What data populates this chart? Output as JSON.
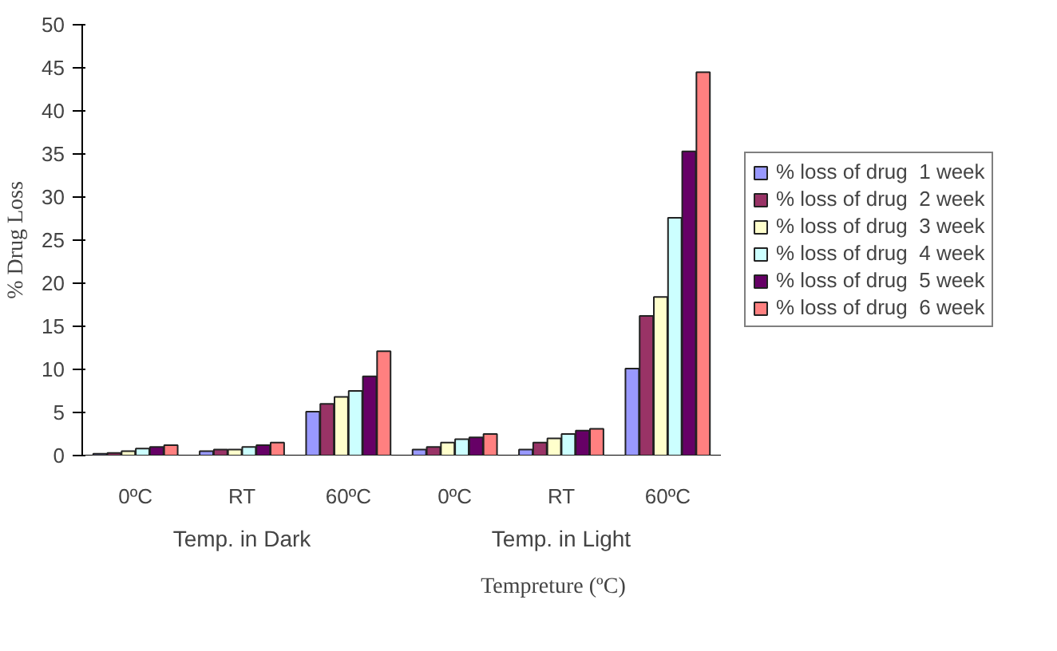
{
  "chart_data": {
    "type": "bar",
    "xlabel": "Tempreture (ºC)",
    "ylabel": "% Drug Loss",
    "categories": [
      "0ºC",
      "RT",
      "60ºC",
      "0ºC",
      "RT",
      "60ºC"
    ],
    "annotations": [
      "Temp. in Dark",
      "Temp. in Light"
    ],
    "series": [
      {
        "name": "% loss of drug  1 week",
        "color": "#9999ff",
        "values": [
          0.2,
          0.5,
          5.1,
          0.7,
          0.7,
          10.1
        ]
      },
      {
        "name": "% loss of drug  2 week",
        "color": "#993366",
        "values": [
          0.3,
          0.7,
          6.0,
          1.0,
          1.5,
          16.2
        ]
      },
      {
        "name": "% loss of drug  3 week",
        "color": "#ffffcc",
        "values": [
          0.5,
          0.7,
          6.8,
          1.5,
          2.0,
          18.4
        ]
      },
      {
        "name": "% loss of drug  4 week",
        "color": "#ccffff",
        "values": [
          0.8,
          1.0,
          7.5,
          1.9,
          2.5,
          27.6
        ]
      },
      {
        "name": "% loss of drug  5 week",
        "color": "#660066",
        "values": [
          1.0,
          1.2,
          9.2,
          2.1,
          2.9,
          35.3
        ]
      },
      {
        "name": "% loss of drug  6 week",
        "color": "#ff8080",
        "values": [
          1.2,
          1.5,
          12.1,
          2.5,
          3.1,
          44.5
        ]
      }
    ],
    "ylim": [
      0,
      50
    ],
    "yticks": [
      0,
      5,
      10,
      15,
      20,
      25,
      30,
      35,
      40,
      45,
      50
    ],
    "legend": "right"
  }
}
